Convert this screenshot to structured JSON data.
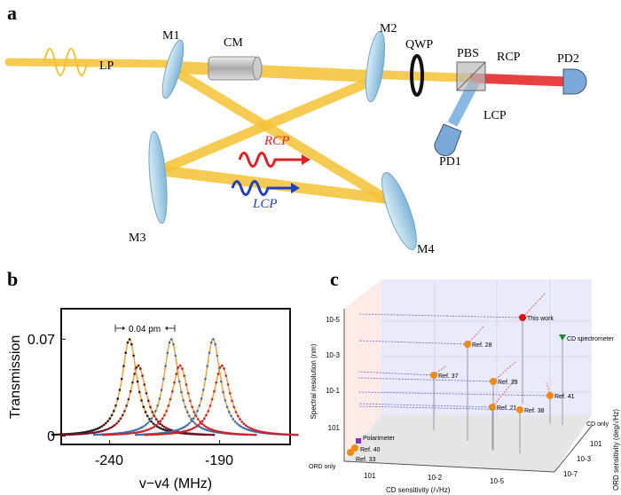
{
  "panel_a": {
    "label": "a",
    "components": {
      "lp": "LP",
      "m1": "M1",
      "cm": "CM",
      "m2": "M2",
      "qwp": "QWP",
      "pbs": "PBS",
      "rcp_out": "RCP",
      "pd2": "PD2",
      "lcp_out": "LCP",
      "pd1": "PD1",
      "m3": "M3",
      "m4": "M4",
      "rcp": "RCP",
      "lcp": "LCP"
    },
    "colors": {
      "beam": "#f5c232",
      "rcp": "#e02020",
      "lcp": "#2040c0",
      "mirror": "#a8d0e8"
    }
  },
  "panel_b": {
    "label": "b",
    "annotation": "0.04 pm",
    "chart_data": {
      "type": "line",
      "xlabel": "v−v4 (MHz)",
      "ylabel": "Transmission",
      "xlim": [
        -262,
        -158
      ],
      "ylim": [
        -0.006,
        0.092
      ],
      "xticks": [
        "-240",
        "-190"
      ],
      "yticks": [
        "0",
        "0.07"
      ],
      "xtick_values": [
        -240,
        -190
      ],
      "ytick_values": [
        0,
        0.07
      ],
      "grid": false,
      "series": [
        {
          "color": "#1a1a1a",
          "center": -231,
          "peak": 0.07,
          "hwhm": 4.2
        },
        {
          "color": "#7a1020",
          "center": -227,
          "peak": 0.051,
          "hwhm": 4.6
        },
        {
          "color": "#3a6fb0",
          "center": -212,
          "peak": 0.07,
          "hwhm": 4.2
        },
        {
          "color": "#d02030",
          "center": -208,
          "peak": 0.051,
          "hwhm": 4.6
        },
        {
          "color": "#3a6fb0",
          "center": -193,
          "peak": 0.07,
          "hwhm": 4.2
        },
        {
          "color": "#d02030",
          "center": -189,
          "peak": 0.051,
          "hwhm": 4.6
        }
      ],
      "fit_color": "#f5a040"
    }
  },
  "panel_c": {
    "label": "c",
    "y_axis_label": "Spectral resolution (nm)",
    "x_axis_label": "CD sensitivity (/√Hz)",
    "z_axis_label": "ORD sensitivity (deg/√Hz)",
    "y_ticks": [
      "10-5",
      "10-3",
      "10-1",
      "101"
    ],
    "x_ticks": [
      "101",
      "10-2",
      "10-5"
    ],
    "z_ticks": [
      "101",
      "10-3",
      "10-7"
    ],
    "cd_only": "CD only",
    "ord_only": "ORD only",
    "points": [
      {
        "label": "This work",
        "color": "#e01010",
        "shape": "circle"
      },
      {
        "label": "CD spectrometer",
        "color": "#1a8a2a",
        "shape": "triangle"
      },
      {
        "label": "Ref. 28",
        "color": "#f08a10",
        "shape": "circle"
      },
      {
        "label": "Ref. 37",
        "color": "#f08a10",
        "shape": "circle"
      },
      {
        "label": "Ref. 39",
        "color": "#f08a10",
        "shape": "circle"
      },
      {
        "label": "Ref. 41",
        "color": "#f08a10",
        "shape": "circle"
      },
      {
        "label": "Ref. 21",
        "color": "#f08a10",
        "shape": "circle"
      },
      {
        "label": "Ref. 38",
        "color": "#f08a10",
        "shape": "circle"
      },
      {
        "label": "Polarimeter",
        "color": "#8a30d0",
        "shape": "square"
      },
      {
        "label": "Ref. 40",
        "color": "#f08a10",
        "shape": "circle"
      },
      {
        "label": "Ref. 33",
        "color": "#f08a10",
        "shape": "circle"
      }
    ]
  }
}
